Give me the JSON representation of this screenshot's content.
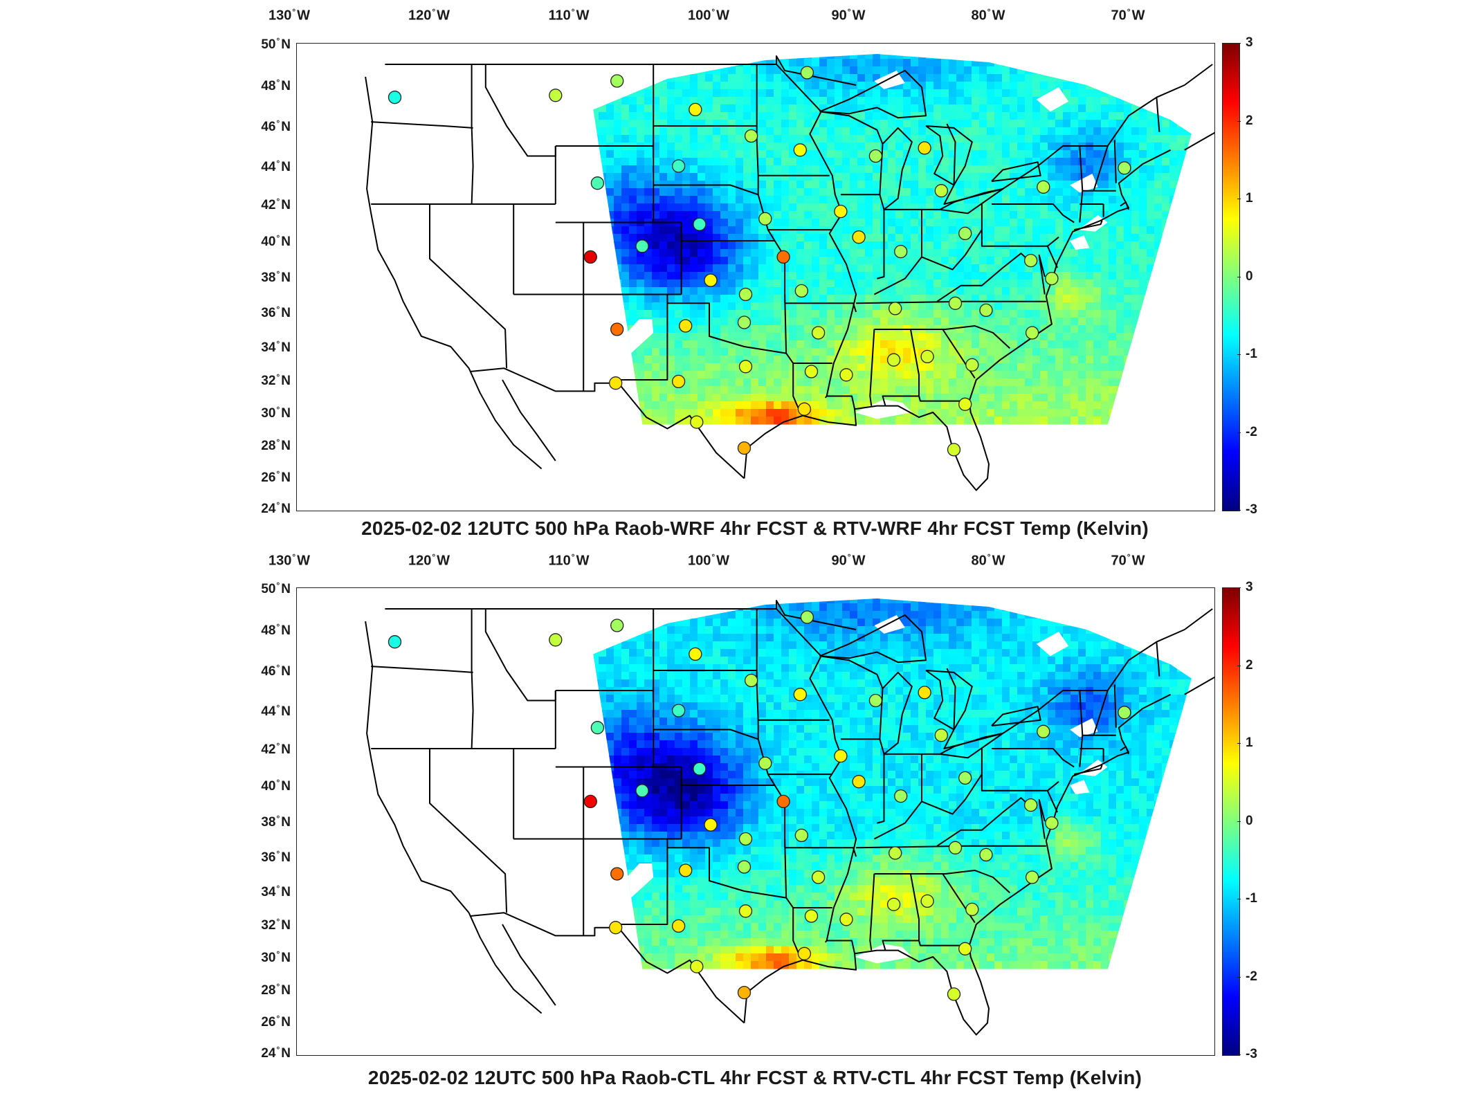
{
  "lon_ticks": [
    {
      "deg": "130",
      "hemi": "W"
    },
    {
      "deg": "120",
      "hemi": "W"
    },
    {
      "deg": "110",
      "hemi": "W"
    },
    {
      "deg": "100",
      "hemi": "W"
    },
    {
      "deg": "90",
      "hemi": "W"
    },
    {
      "deg": "80",
      "hemi": "W"
    },
    {
      "deg": "70",
      "hemi": "W"
    }
  ],
  "lat_ticks": [
    {
      "deg": "50",
      "hemi": "N"
    },
    {
      "deg": "48",
      "hemi": "N"
    },
    {
      "deg": "46",
      "hemi": "N"
    },
    {
      "deg": "44",
      "hemi": "N"
    },
    {
      "deg": "42",
      "hemi": "N"
    },
    {
      "deg": "40",
      "hemi": "N"
    },
    {
      "deg": "38",
      "hemi": "N"
    },
    {
      "deg": "36",
      "hemi": "N"
    },
    {
      "deg": "34",
      "hemi": "N"
    },
    {
      "deg": "32",
      "hemi": "N"
    },
    {
      "deg": "30",
      "hemi": "N"
    },
    {
      "deg": "28",
      "hemi": "N"
    },
    {
      "deg": "26",
      "hemi": "N"
    },
    {
      "deg": "24",
      "hemi": "N"
    }
  ],
  "colorbar": {
    "ticks": [
      "3",
      "2",
      "1",
      "0",
      "-1",
      "-2",
      "-3"
    ],
    "min": -3,
    "max": 3,
    "colormap": "jet"
  },
  "panels": [
    {
      "id": "top",
      "title": "2025-02-02 12UTC 500 hPa Raob-WRF 4hr FCST & RTV-WRF 4hr FCST Temp (Kelvin)",
      "field_bias": 0.0,
      "raob_points": [
        {
          "lon": -122.5,
          "lat": 47.4,
          "v": -0.6
        },
        {
          "lon": -111.0,
          "lat": 47.5,
          "v": 0.4
        },
        {
          "lon": -106.6,
          "lat": 48.2,
          "v": 0.2
        },
        {
          "lon": -101.0,
          "lat": 46.8,
          "v": 0.8
        },
        {
          "lon": -97.0,
          "lat": 45.5,
          "v": 0.3
        },
        {
          "lon": -102.2,
          "lat": 44.0,
          "v": -0.4
        },
        {
          "lon": -93.5,
          "lat": 44.8,
          "v": 0.7
        },
        {
          "lon": -93.0,
          "lat": 48.6,
          "v": 0.2
        },
        {
          "lon": -88.1,
          "lat": 44.5,
          "v": 0.2
        },
        {
          "lon": -84.6,
          "lat": 44.9,
          "v": 0.9
        },
        {
          "lon": -83.4,
          "lat": 42.7,
          "v": 0.4
        },
        {
          "lon": -76.1,
          "lat": 42.9,
          "v": 0.3
        },
        {
          "lon": -70.3,
          "lat": 43.9,
          "v": 0.2
        },
        {
          "lon": -108.0,
          "lat": 43.1,
          "v": -0.3
        },
        {
          "lon": -100.7,
          "lat": 40.9,
          "v": -0.4
        },
        {
          "lon": -96.0,
          "lat": 41.2,
          "v": 0.3
        },
        {
          "lon": -90.6,
          "lat": 41.6,
          "v": 0.8
        },
        {
          "lon": -89.3,
          "lat": 40.2,
          "v": 0.9
        },
        {
          "lon": -86.3,
          "lat": 39.4,
          "v": 0.2
        },
        {
          "lon": -81.7,
          "lat": 40.4,
          "v": 0.2
        },
        {
          "lon": -77.0,
          "lat": 38.9,
          "v": 0.3
        },
        {
          "lon": -75.5,
          "lat": 37.9,
          "v": 0.3
        },
        {
          "lon": -108.5,
          "lat": 39.1,
          "v": 2.4
        },
        {
          "lon": -104.8,
          "lat": 39.7,
          "v": -0.3
        },
        {
          "lon": -94.7,
          "lat": 39.1,
          "v": 1.6
        },
        {
          "lon": -99.9,
          "lat": 37.8,
          "v": 0.8
        },
        {
          "lon": -97.4,
          "lat": 37.0,
          "v": 0.3
        },
        {
          "lon": -93.4,
          "lat": 37.2,
          "v": 0.3
        },
        {
          "lon": -86.7,
          "lat": 36.2,
          "v": 0.4
        },
        {
          "lon": -82.4,
          "lat": 36.5,
          "v": 0.3
        },
        {
          "lon": -80.2,
          "lat": 36.1,
          "v": 0.3
        },
        {
          "lon": -106.6,
          "lat": 35.0,
          "v": 1.6
        },
        {
          "lon": -101.7,
          "lat": 35.2,
          "v": 0.9
        },
        {
          "lon": -97.5,
          "lat": 35.4,
          "v": 0.2
        },
        {
          "lon": -92.2,
          "lat": 34.8,
          "v": 0.5
        },
        {
          "lon": -76.9,
          "lat": 34.8,
          "v": 0.3
        },
        {
          "lon": -106.7,
          "lat": 31.8,
          "v": 0.9
        },
        {
          "lon": -102.2,
          "lat": 31.9,
          "v": 0.9
        },
        {
          "lon": -97.4,
          "lat": 32.8,
          "v": 0.6
        },
        {
          "lon": -90.2,
          "lat": 32.3,
          "v": 0.6
        },
        {
          "lon": -86.8,
          "lat": 33.2,
          "v": 0.5
        },
        {
          "lon": -84.4,
          "lat": 33.4,
          "v": 0.5
        },
        {
          "lon": -81.2,
          "lat": 32.9,
          "v": 0.4
        },
        {
          "lon": -92.7,
          "lat": 32.5,
          "v": 0.6
        },
        {
          "lon": -100.9,
          "lat": 29.4,
          "v": 0.6
        },
        {
          "lon": -97.5,
          "lat": 27.8,
          "v": 1.2
        },
        {
          "lon": -93.2,
          "lat": 30.2,
          "v": 0.9
        },
        {
          "lon": -81.7,
          "lat": 30.5,
          "v": 0.6
        },
        {
          "lon": -82.5,
          "lat": 27.7,
          "v": 0.5
        }
      ]
    },
    {
      "id": "bottom",
      "title": "2025-02-02 12UTC 500 hPa Raob-CTL 4hr FCST & RTV-CTL 4hr FCST Temp (Kelvin)",
      "field_bias": -0.25,
      "raob_points": [
        {
          "lon": -122.5,
          "lat": 47.4,
          "v": -0.6
        },
        {
          "lon": -111.0,
          "lat": 47.5,
          "v": 0.4
        },
        {
          "lon": -106.6,
          "lat": 48.2,
          "v": 0.2
        },
        {
          "lon": -101.0,
          "lat": 46.8,
          "v": 0.8
        },
        {
          "lon": -97.0,
          "lat": 45.5,
          "v": 0.3
        },
        {
          "lon": -102.2,
          "lat": 44.0,
          "v": -0.4
        },
        {
          "lon": -93.5,
          "lat": 44.8,
          "v": 0.8
        },
        {
          "lon": -93.0,
          "lat": 48.6,
          "v": 0.2
        },
        {
          "lon": -88.1,
          "lat": 44.5,
          "v": 0.2
        },
        {
          "lon": -84.6,
          "lat": 44.9,
          "v": 0.9
        },
        {
          "lon": -83.4,
          "lat": 42.7,
          "v": 0.4
        },
        {
          "lon": -76.1,
          "lat": 42.9,
          "v": 0.3
        },
        {
          "lon": -70.3,
          "lat": 43.9,
          "v": 0.2
        },
        {
          "lon": -108.0,
          "lat": 43.1,
          "v": -0.3
        },
        {
          "lon": -100.7,
          "lat": 40.9,
          "v": -0.4
        },
        {
          "lon": -96.0,
          "lat": 41.2,
          "v": 0.3
        },
        {
          "lon": -90.6,
          "lat": 41.6,
          "v": 0.8
        },
        {
          "lon": -89.3,
          "lat": 40.2,
          "v": 0.9
        },
        {
          "lon": -86.3,
          "lat": 39.4,
          "v": 0.2
        },
        {
          "lon": -81.7,
          "lat": 40.4,
          "v": 0.2
        },
        {
          "lon": -77.0,
          "lat": 38.9,
          "v": 0.3
        },
        {
          "lon": -75.5,
          "lat": 37.9,
          "v": 0.3
        },
        {
          "lon": -108.5,
          "lat": 39.1,
          "v": 2.3
        },
        {
          "lon": -104.8,
          "lat": 39.7,
          "v": -0.3
        },
        {
          "lon": -94.7,
          "lat": 39.1,
          "v": 1.6
        },
        {
          "lon": -99.9,
          "lat": 37.8,
          "v": 0.8
        },
        {
          "lon": -97.4,
          "lat": 37.0,
          "v": 0.3
        },
        {
          "lon": -93.4,
          "lat": 37.2,
          "v": 0.3
        },
        {
          "lon": -86.7,
          "lat": 36.2,
          "v": 0.4
        },
        {
          "lon": -82.4,
          "lat": 36.5,
          "v": 0.3
        },
        {
          "lon": -80.2,
          "lat": 36.1,
          "v": 0.3
        },
        {
          "lon": -106.6,
          "lat": 35.0,
          "v": 1.6
        },
        {
          "lon": -101.7,
          "lat": 35.2,
          "v": 0.9
        },
        {
          "lon": -97.5,
          "lat": 35.4,
          "v": 0.2
        },
        {
          "lon": -92.2,
          "lat": 34.8,
          "v": 0.5
        },
        {
          "lon": -76.9,
          "lat": 34.8,
          "v": 0.3
        },
        {
          "lon": -106.7,
          "lat": 31.8,
          "v": 0.9
        },
        {
          "lon": -102.2,
          "lat": 31.9,
          "v": 0.9
        },
        {
          "lon": -97.4,
          "lat": 32.8,
          "v": 0.6
        },
        {
          "lon": -90.2,
          "lat": 32.3,
          "v": 0.6
        },
        {
          "lon": -86.8,
          "lat": 33.2,
          "v": 0.5
        },
        {
          "lon": -84.4,
          "lat": 33.4,
          "v": 0.5
        },
        {
          "lon": -81.2,
          "lat": 32.9,
          "v": 0.4
        },
        {
          "lon": -92.7,
          "lat": 32.5,
          "v": 0.6
        },
        {
          "lon": -100.9,
          "lat": 29.4,
          "v": 0.6
        },
        {
          "lon": -97.5,
          "lat": 27.8,
          "v": 1.2
        },
        {
          "lon": -93.2,
          "lat": 30.2,
          "v": 0.9
        },
        {
          "lon": -81.7,
          "lat": 30.5,
          "v": 0.6
        },
        {
          "lon": -82.5,
          "lat": 27.7,
          "v": 0.5
        }
      ]
    }
  ]
}
